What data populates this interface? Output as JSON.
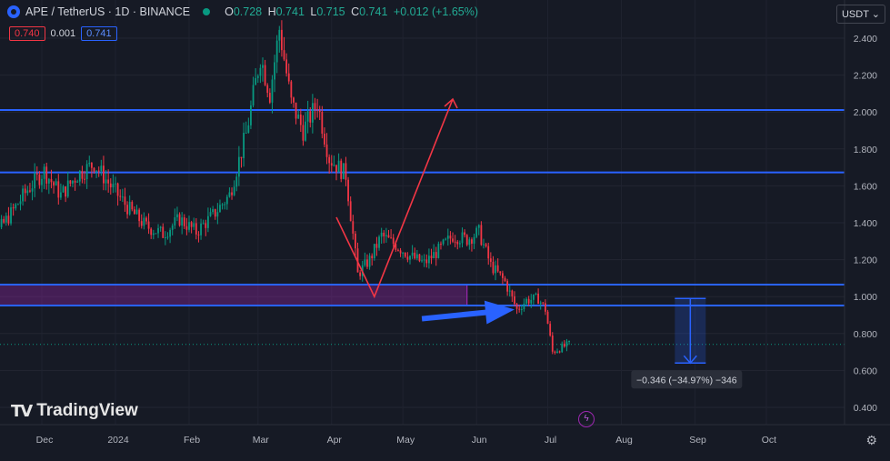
{
  "header": {
    "symbol": "APE / TetherUS · 1D · BINANCE",
    "o_label": "O",
    "o": "0.728",
    "h_label": "H",
    "h": "0.741",
    "l_label": "L",
    "l": "0.715",
    "c_label": "C",
    "c": "0.741",
    "change": "+0.012 (+1.65%)"
  },
  "order": {
    "sell": "0.740",
    "spread": "0.001",
    "buy": "0.741"
  },
  "currency": "USDT",
  "logo_text": "TradingView",
  "colors": {
    "bg": "#161a25",
    "up": "#089981",
    "down": "#f23645",
    "level": "#2962ff",
    "zone": "#9c27b0"
  },
  "chart_data": {
    "type": "candlestick",
    "y_axis": {
      "scale": "linear",
      "ylim": [
        0.35,
        2.52
      ],
      "ticks": [
        0.4,
        0.6,
        0.8,
        1.0,
        1.2,
        1.4,
        1.6,
        1.8,
        2.0,
        2.2,
        2.4
      ]
    },
    "x_labels": [
      "Dec",
      "2024",
      "Feb",
      "Mar",
      "Apr",
      "May",
      "Jun",
      "Jul",
      "Aug",
      "Sep",
      "Oct"
    ],
    "last_price": 0.741,
    "horizontal_levels": [
      2.011,
      1.673,
      1.065,
      0.952
    ],
    "zone": {
      "top": 1.065,
      "bottom": 0.952,
      "start": "2023-11-03",
      "end": "2024-05-28"
    },
    "price_path": [
      [
        "2023-11-03",
        1.4
      ],
      [
        "2023-11-10",
        1.31
      ],
      [
        "2023-11-18",
        1.45
      ],
      [
        "2023-11-25",
        1.58
      ],
      [
        "2023-12-02",
        1.68
      ],
      [
        "2023-12-09",
        1.55
      ],
      [
        "2023-12-16",
        1.66
      ],
      [
        "2023-12-23",
        1.72
      ],
      [
        "2023-12-30",
        1.6
      ],
      [
        "2024-01-07",
        1.47
      ],
      [
        "2024-01-14",
        1.38
      ],
      [
        "2024-01-21",
        1.34
      ],
      [
        "2024-01-28",
        1.42
      ],
      [
        "2024-02-04",
        1.35
      ],
      [
        "2024-02-11",
        1.44
      ],
      [
        "2024-02-18",
        1.55
      ],
      [
        "2024-02-25",
        1.88
      ],
      [
        "2024-03-02",
        2.3
      ],
      [
        "2024-03-06",
        2.1
      ],
      [
        "2024-03-10",
        2.45
      ],
      [
        "2024-03-15",
        2.05
      ],
      [
        "2024-03-20",
        1.9
      ],
      [
        "2024-03-26",
        2.05
      ],
      [
        "2024-03-31",
        1.75
      ],
      [
        "2024-04-07",
        1.66
      ],
      [
        "2024-04-12",
        1.12
      ],
      [
        "2024-04-17",
        1.2
      ],
      [
        "2024-04-22",
        1.33
      ],
      [
        "2024-04-28",
        1.28
      ],
      [
        "2024-05-04",
        1.22
      ],
      [
        "2024-05-10",
        1.18
      ],
      [
        "2024-05-16",
        1.25
      ],
      [
        "2024-05-22",
        1.33
      ],
      [
        "2024-05-28",
        1.31
      ],
      [
        "2024-06-02",
        1.35
      ],
      [
        "2024-06-07",
        1.17
      ],
      [
        "2024-06-13",
        1.08
      ],
      [
        "2024-06-18",
        0.93
      ],
      [
        "2024-06-22",
        0.98
      ],
      [
        "2024-06-27",
        0.99
      ],
      [
        "2024-06-30",
        0.93
      ],
      [
        "2024-07-03",
        0.7
      ],
      [
        "2024-07-06",
        0.72
      ],
      [
        "2024-07-10",
        0.741
      ]
    ],
    "measure_label": "−0.346 (−34.97%) −346",
    "measure": {
      "from": 0.99,
      "to": 0.64,
      "date": "2024-08-30"
    },
    "projection_path": [
      [
        "2024-04-03",
        1.43
      ],
      [
        "2024-04-19",
        1.0
      ],
      [
        "2024-05-01",
        1.39
      ],
      [
        "2024-05-22",
        2.07
      ]
    ],
    "arrow": {
      "from": [
        "2024-05-09",
        0.88
      ],
      "to": [
        "2024-06-17",
        0.93
      ]
    }
  }
}
